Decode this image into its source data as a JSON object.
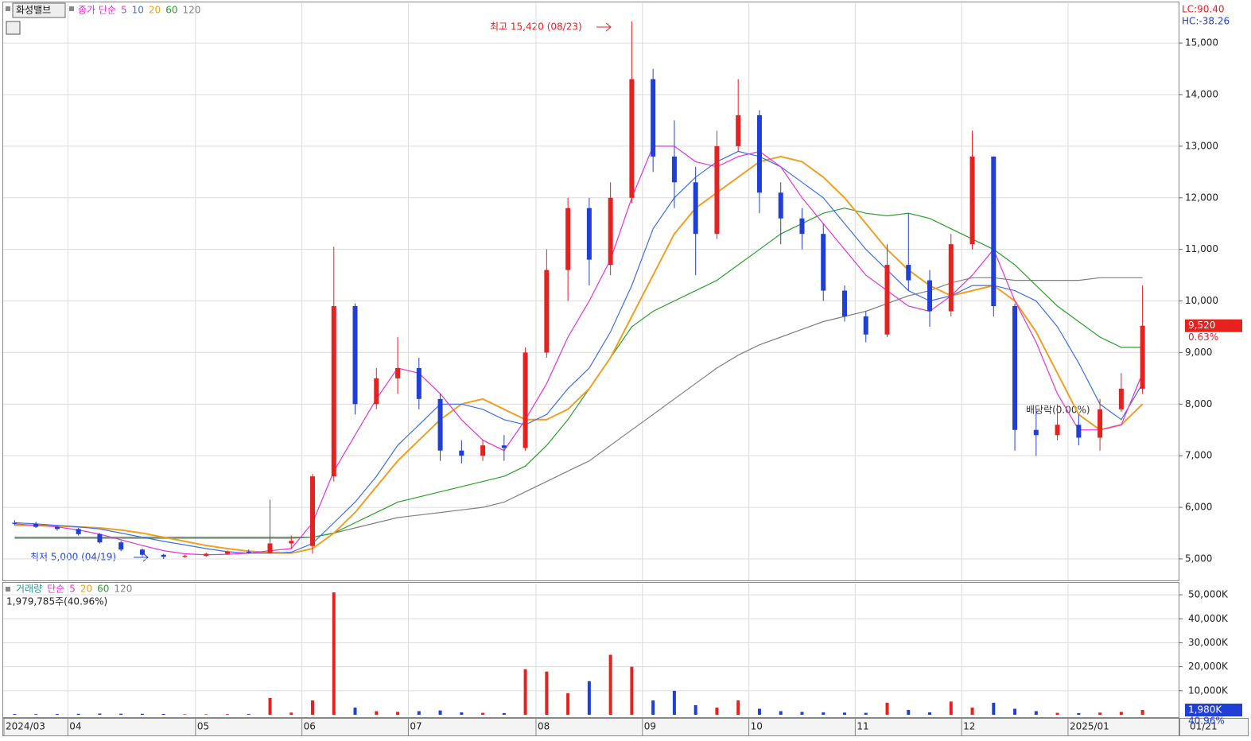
{
  "chart_data": [
    {
      "type": "candlestick",
      "title": "화성밸브",
      "series_label": "종가 단순",
      "categories": [
        "2024/03",
        null,
        null,
        "04",
        null,
        null,
        null,
        null,
        null,
        "05",
        null,
        null,
        null,
        null,
        "06",
        null,
        null,
        null,
        null,
        "07",
        null,
        null,
        null,
        null,
        null,
        "08",
        null,
        null,
        null,
        null,
        "09",
        null,
        null,
        null,
        null,
        "10",
        null,
        null,
        null,
        null,
        "11",
        null,
        null,
        null,
        null,
        "12",
        null,
        null,
        null,
        null,
        "2025/01",
        null,
        null,
        null
      ],
      "open": [
        5700,
        5680,
        5620,
        5580,
        5480,
        5320,
        5180,
        5080,
        5040,
        5060,
        5100,
        5140,
        5120,
        5300,
        5250,
        6600,
        9900,
        8000,
        8500,
        8700,
        8100,
        7100,
        7000,
        7200,
        7150,
        9000,
        10600,
        11800,
        10700,
        12000,
        14300,
        12800,
        12300,
        11300,
        13000,
        13600,
        12100,
        11600,
        11300,
        10200,
        9700,
        9350,
        10700,
        10400,
        9800,
        11100,
        12800,
        9900,
        7500,
        7400,
        7600,
        7350,
        7900,
        8300
      ],
      "high": [
        5750,
        5720,
        5650,
        5600,
        5500,
        5350,
        5200,
        5100,
        5080,
        5120,
        5160,
        5180,
        6150,
        5450,
        6650,
        11050,
        9950,
        8700,
        9300,
        8900,
        8200,
        7300,
        7300,
        7400,
        9100,
        11000,
        12000,
        12000,
        12300,
        15420,
        14500,
        13500,
        12600,
        13300,
        14300,
        13700,
        12300,
        11800,
        11500,
        10300,
        9800,
        11100,
        11700,
        10600,
        11300,
        13300,
        12800,
        9950,
        7900,
        8000,
        7800,
        8100,
        8600,
        10300
      ],
      "low": [
        5650,
        5600,
        5550,
        5450,
        5300,
        5150,
        5050,
        5000,
        5020,
        5040,
        5080,
        5100,
        5100,
        5200,
        5100,
        6500,
        7800,
        7900,
        8200,
        7900,
        6900,
        6850,
        6900,
        6900,
        7100,
        8900,
        10000,
        10300,
        10500,
        11900,
        12500,
        11800,
        10500,
        11200,
        12900,
        11700,
        11100,
        11000,
        10000,
        9600,
        9200,
        9300,
        10200,
        9500,
        9700,
        11000,
        9700,
        7100,
        7000,
        7300,
        7200,
        7100,
        7850,
        8200
      ],
      "close": [
        5680,
        5620,
        5580,
        5480,
        5320,
        5180,
        5080,
        5040,
        5060,
        5100,
        5140,
        5120,
        5300,
        5350,
        6600,
        9900,
        8000,
        8500,
        8700,
        8100,
        7100,
        7000,
        7200,
        7150,
        9000,
        10600,
        11800,
        10800,
        12000,
        14300,
        12800,
        12300,
        11300,
        13000,
        13600,
        12100,
        11600,
        11300,
        10200,
        9700,
        9350,
        10700,
        10400,
        9800,
        11100,
        12800,
        9900,
        7500,
        7400,
        7600,
        7350,
        7900,
        8300,
        9520
      ],
      "up_color": "#e8201e",
      "down_color": "#1f3fd6",
      "series": [
        {
          "name": "5",
          "color": "#e632d8",
          "values": [
            5680,
            5650,
            5620,
            5560,
            5480,
            5370,
            5260,
            5160,
            5100,
            5080,
            5090,
            5110,
            5160,
            5200,
            5700,
            6700,
            7400,
            8100,
            8700,
            8600,
            8200,
            7700,
            7300,
            7100,
            7700,
            8400,
            9300,
            10000,
            10800,
            12000,
            13000,
            13000,
            12700,
            12600,
            12800,
            12900,
            12600,
            12000,
            11500,
            11000,
            10500,
            10200,
            9900,
            9800,
            10100,
            10500,
            11000,
            10000,
            9200,
            8200,
            7500,
            7500,
            7600,
            8600
          ]
        },
        {
          "name": "10",
          "color": "#3b6fe8",
          "values": [
            5700,
            5680,
            5650,
            5620,
            5580,
            5500,
            5420,
            5340,
            5270,
            5200,
            5140,
            5110,
            5110,
            5130,
            5300,
            5700,
            6100,
            6600,
            7200,
            7600,
            8000,
            8000,
            7900,
            7700,
            7600,
            7800,
            8300,
            8700,
            9400,
            10300,
            11400,
            12000,
            12400,
            12700,
            12900,
            12800,
            12600,
            12300,
            12000,
            11500,
            11000,
            10600,
            10200,
            10000,
            10100,
            10300,
            10300,
            10200,
            10000,
            9500,
            8800,
            8000,
            7700,
            8400
          ]
        },
        {
          "name": "20",
          "color": "#f0a020",
          "values": [
            5650,
            5650,
            5640,
            5620,
            5600,
            5560,
            5500,
            5420,
            5340,
            5260,
            5200,
            5150,
            5120,
            5110,
            5200,
            5500,
            5900,
            6400,
            6900,
            7300,
            7700,
            8000,
            8100,
            7900,
            7700,
            7700,
            7900,
            8300,
            8900,
            9700,
            10500,
            11300,
            11800,
            12100,
            12400,
            12700,
            12800,
            12700,
            12400,
            12000,
            11500,
            11000,
            10600,
            10300,
            10100,
            10200,
            10300,
            10000,
            9400,
            8600,
            7800,
            7500,
            7600,
            8000
          ]
        },
        {
          "name": "60",
          "color": "#2aa02a",
          "values": [
            5420,
            5420,
            5420,
            5420,
            5420,
            5420,
            5420,
            5420,
            5420,
            5420,
            5420,
            5420,
            5420,
            5420,
            5420,
            5500,
            5700,
            5900,
            6100,
            6200,
            6300,
            6400,
            6500,
            6600,
            6800,
            7200,
            7700,
            8300,
            8900,
            9500,
            9800,
            10000,
            10200,
            10400,
            10700,
            11000,
            11300,
            11500,
            11700,
            11800,
            11700,
            11650,
            11700,
            11600,
            11400,
            11200,
            11000,
            10700,
            10300,
            9900,
            9600,
            9300,
            9100,
            9100
          ]
        },
        {
          "name": "120",
          "color": "#808080",
          "values": [
            5400,
            5400,
            5400,
            5400,
            5400,
            5400,
            5400,
            5400,
            5400,
            5400,
            5400,
            5400,
            5400,
            5400,
            5420,
            5500,
            5600,
            5700,
            5800,
            5850,
            5900,
            5950,
            6000,
            6100,
            6300,
            6500,
            6700,
            6900,
            7200,
            7500,
            7800,
            8100,
            8400,
            8700,
            8950,
            9150,
            9300,
            9450,
            9600,
            9700,
            9800,
            9950,
            10100,
            10200,
            10350,
            10450,
            10450,
            10400,
            10400,
            10400,
            10400,
            10450,
            10450,
            10450
          ]
        }
      ],
      "ylim": [
        4583,
        15788
      ],
      "yticks": [
        {
          "value": 5000,
          "label": "5,000"
        },
        {
          "value": 6000,
          "label": "6,000"
        },
        {
          "value": 7000,
          "label": "7,000"
        },
        {
          "value": 8000,
          "label": "8,000"
        },
        {
          "value": 9000,
          "label": "9,000"
        },
        {
          "value": 10000,
          "label": "10,000"
        },
        {
          "value": 11000,
          "label": "11,000"
        },
        {
          "value": 12000,
          "label": "12,000"
        },
        {
          "value": 13000,
          "label": "13,000"
        },
        {
          "value": 14000,
          "label": "14,000"
        },
        {
          "value": 15000,
          "label": "15,000"
        }
      ],
      "grid": true,
      "lc": "LC:90.40",
      "hc": "HC:-38.26",
      "last": {
        "value": 9520,
        "label": "9,520",
        "change": "0.63%"
      },
      "annotations": {
        "high": "최고 15,420 (08/23)",
        "low": "최저 5,000 (04/19)",
        "dividend": "배당락(0.00%)"
      },
      "current_date": "01/21"
    },
    {
      "type": "bar",
      "title": "거래량",
      "series_label": "단순",
      "ma_legend": [
        {
          "name": "5",
          "color": "#e632d8"
        },
        {
          "name": "20",
          "color": "#f0a020"
        },
        {
          "name": "60",
          "color": "#2aa02a"
        },
        {
          "name": "120",
          "color": "#808080"
        }
      ],
      "info": "1,979,785주(40.96%)",
      "values": [
        300,
        250,
        300,
        400,
        500,
        450,
        400,
        350,
        200,
        200,
        250,
        300,
        7000,
        900,
        6000,
        51000,
        3000,
        1500,
        1200,
        1500,
        1800,
        1000,
        800,
        700,
        19000,
        18000,
        9000,
        14000,
        25000,
        20000,
        6000,
        10000,
        4000,
        3000,
        6000,
        2500,
        1500,
        1200,
        1000,
        900,
        800,
        5000,
        2000,
        1000,
        5500,
        3000,
        5000,
        2500,
        1500,
        800,
        700,
        900,
        1200,
        1980
      ],
      "ylim": [
        0,
        55000
      ],
      "yticks": [
        {
          "value": 10000,
          "label": "10,000K"
        },
        {
          "value": 20000,
          "label": "20,000K"
        },
        {
          "value": 30000,
          "label": "30,000K"
        },
        {
          "value": 40000,
          "label": "40,000K"
        },
        {
          "value": 50000,
          "label": "50,000K"
        }
      ],
      "last": {
        "value": 1980,
        "label": "1,980K",
        "ratio": "40.96%"
      }
    }
  ]
}
